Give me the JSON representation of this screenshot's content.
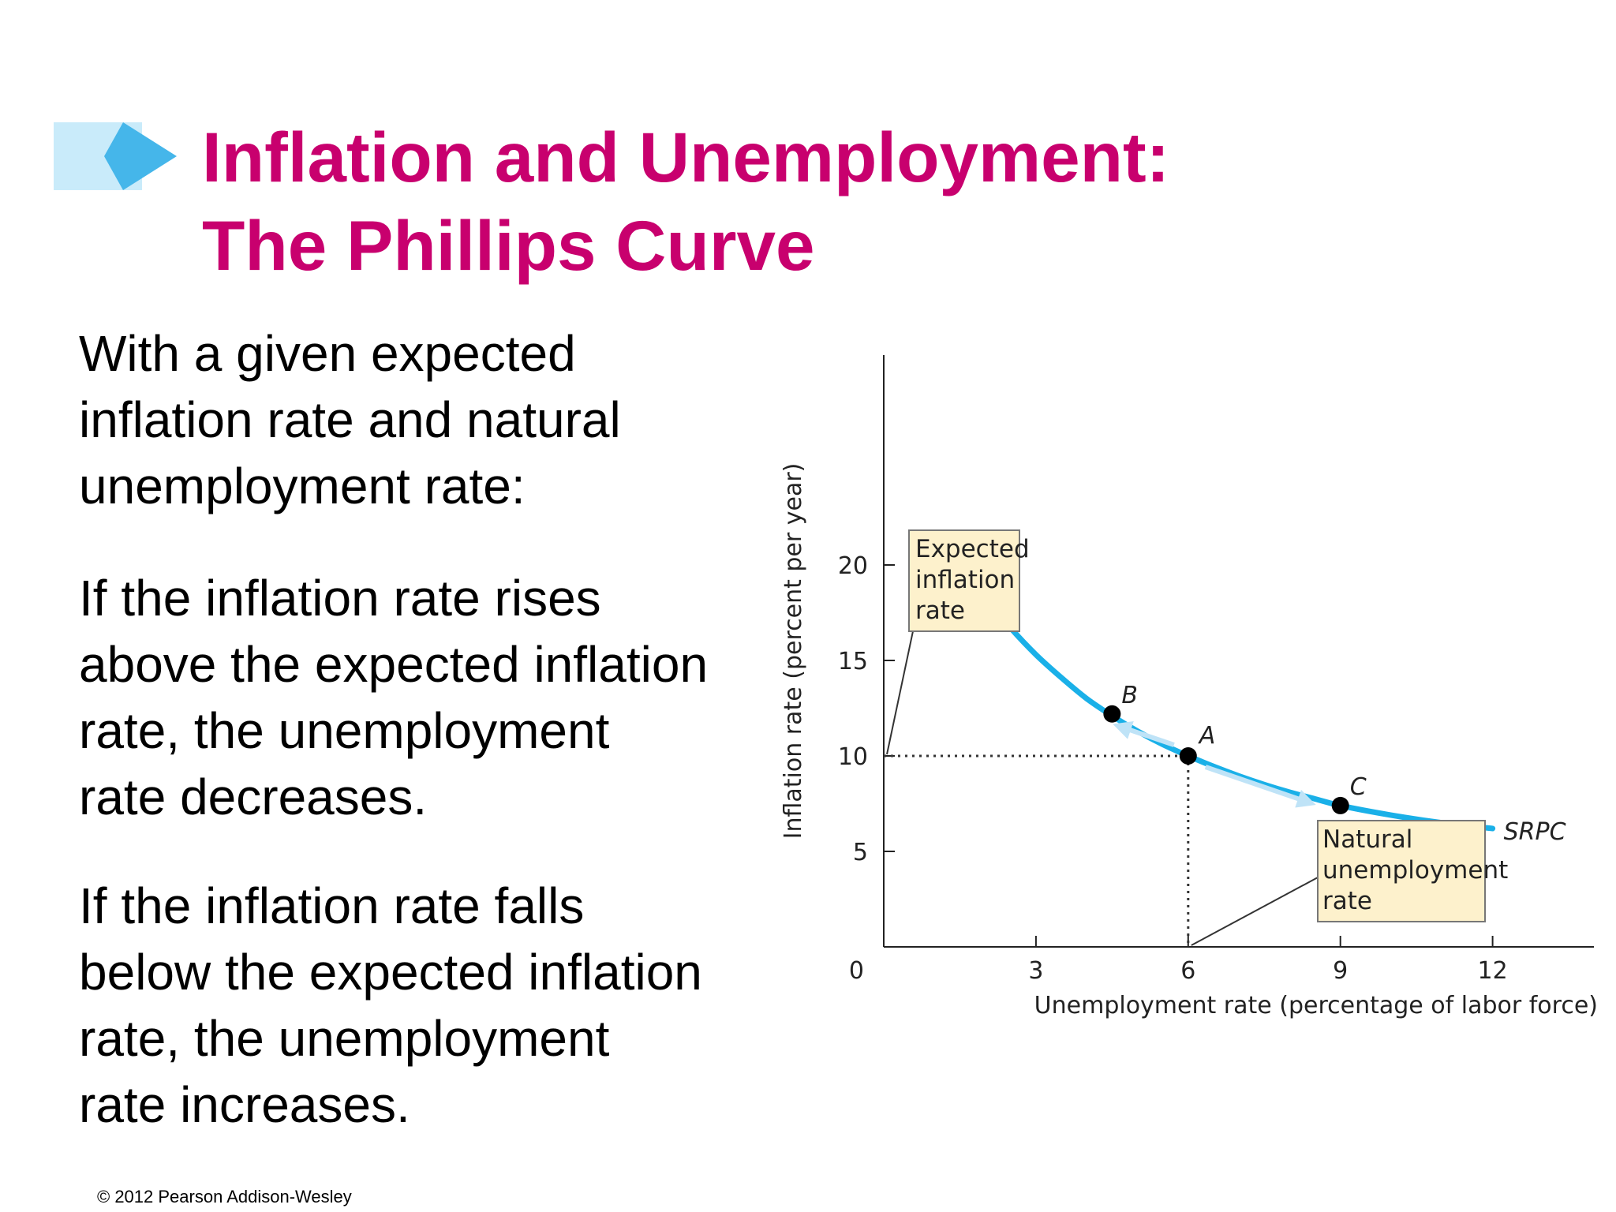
{
  "slide": {
    "title_lines": [
      "Inflation and Unemployment:",
      "The Phillips Curve"
    ],
    "paragraphs": [
      [
        "With a given expected",
        "inflation rate and natural",
        "unemployment rate:"
      ],
      [
        "If the inflation rate rises",
        "above the expected inflation",
        "rate, the unemployment",
        "rate decreases."
      ],
      [
        "If the inflation rate falls",
        "below the expected inflation",
        "rate, the unemployment",
        "rate increases."
      ]
    ],
    "copyright": "© 2012 Pearson Addison-Wesley"
  },
  "colors": {
    "title": "#c8006e",
    "curve": "#1ab0e8",
    "arrow": "#bfe3f7",
    "deco_light": "#c9ebfa",
    "deco_dark": "#45b6ea",
    "callout_fill": "#fdf1cc"
  },
  "chart_data": {
    "type": "line",
    "xlabel": "Unemployment rate (percentage of labor force)",
    "ylabel": "Inflation rate (percent per year)",
    "xlim": [
      0,
      12.5
    ],
    "ylim": [
      0,
      20
    ],
    "x_ticks": [
      3,
      6,
      9,
      12
    ],
    "y_ticks": [
      5,
      10,
      15,
      20
    ],
    "origin_label": "0",
    "grid": false,
    "series": [
      {
        "name": "SRPC",
        "x": [
          2,
          2.5,
          3,
          3.5,
          4,
          4.5,
          5,
          5.5,
          6,
          6.5,
          7,
          7.5,
          8,
          8.5,
          9,
          10,
          11,
          12
        ],
        "values": [
          18.3,
          16.7,
          15.3,
          14.1,
          13.0,
          12.1,
          11.3,
          10.6,
          10.0,
          9.45,
          8.95,
          8.5,
          8.1,
          7.75,
          7.4,
          6.9,
          6.5,
          6.2
        ]
      }
    ],
    "points": [
      {
        "label": "B",
        "x": 4.5,
        "y": 12.2
      },
      {
        "label": "A",
        "x": 6,
        "y": 10
      },
      {
        "label": "C",
        "x": 9,
        "y": 7.4
      }
    ],
    "reference": {
      "expected_inflation": 10,
      "natural_unemployment": 6
    },
    "annotations": {
      "expected_box": [
        "Expected",
        "inflation",
        "rate"
      ],
      "natural_box": [
        "Natural",
        "unemployment",
        "rate"
      ]
    }
  }
}
